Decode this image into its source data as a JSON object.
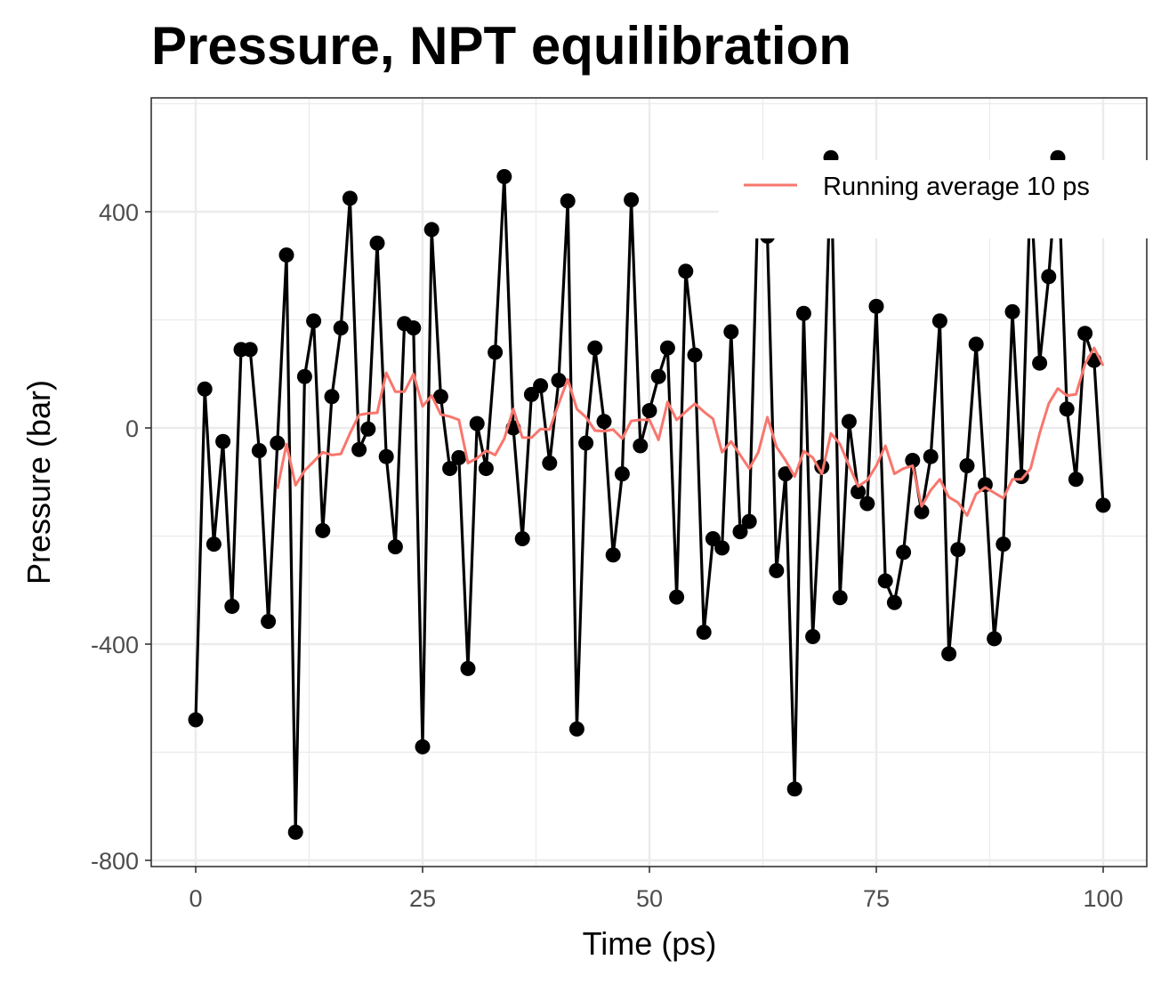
{
  "chart_data": {
    "type": "line",
    "title": "Pressure, NPT equilibration",
    "xlabel": "Time (ps)",
    "ylabel": "Pressure (bar)",
    "xlim": [
      -5,
      105
    ],
    "ylim": [
      -810,
      600
    ],
    "x_ticks": [
      0,
      25,
      50,
      75,
      100
    ],
    "x_tick_labels": [
      "0",
      "25",
      "50",
      "75",
      "100"
    ],
    "y_ticks": [
      -800,
      -400,
      0,
      400
    ],
    "y_tick_labels": [
      "-800",
      "-400",
      "0",
      "400"
    ],
    "grid": true,
    "legend_position": "top-right",
    "series": [
      {
        "style": "line+points",
        "color": "#000000",
        "x": [
          0,
          1,
          2,
          3,
          4,
          5,
          6,
          7,
          8,
          9,
          10,
          11,
          12,
          13,
          14,
          15,
          16,
          17,
          18,
          19,
          20,
          21,
          22,
          23,
          24,
          25,
          26,
          27,
          28,
          29,
          30,
          31,
          32,
          33,
          34,
          35,
          36,
          37,
          38,
          39,
          40,
          41,
          42,
          43,
          44,
          45,
          46,
          47,
          48,
          49,
          50,
          51,
          52,
          53,
          54,
          55,
          56,
          57,
          58,
          59,
          60,
          61,
          62,
          63,
          64,
          65,
          66,
          67,
          68,
          69,
          70,
          71,
          72,
          73,
          74,
          75,
          76,
          77,
          78,
          79,
          80,
          81,
          82,
          83,
          84,
          85,
          86,
          87,
          88,
          89,
          90,
          91,
          92,
          93,
          94,
          95,
          96,
          97,
          98,
          99,
          100
        ],
        "y": [
          -540,
          72,
          -215,
          -25,
          -330,
          145,
          145,
          -42,
          -358,
          -28,
          320,
          -748,
          95,
          198,
          -190,
          58,
          185,
          425,
          -40,
          -2,
          342,
          -53,
          -220,
          193,
          185,
          -590,
          367,
          58,
          -75,
          -55,
          -445,
          8,
          -75,
          140,
          465,
          0,
          -205,
          62,
          78,
          -65,
          88,
          420,
          -557,
          -28,
          148,
          12,
          -235,
          -85,
          422,
          -33,
          32,
          95,
          148,
          -313,
          290,
          135,
          -378,
          -205,
          -222,
          178,
          -192,
          -173,
          450,
          355,
          -264,
          -85,
          -668,
          212,
          -386,
          -72,
          500,
          -314,
          12,
          -118,
          -140,
          225,
          -283,
          -323,
          -230,
          -60,
          -155,
          -53,
          198,
          -418,
          -225,
          -70,
          155,
          -105,
          -390,
          -215,
          215,
          -90,
          450,
          120,
          280,
          500,
          35,
          -95,
          175,
          125,
          -143
        ]
      },
      {
        "name": "Running average 10 ps",
        "style": "line",
        "color": "#f8766d",
        "x": [
          9,
          10,
          11,
          12,
          13,
          14,
          15,
          16,
          17,
          18,
          19,
          20,
          21,
          22,
          23,
          24,
          25,
          26,
          27,
          28,
          29,
          30,
          31,
          32,
          33,
          34,
          35,
          36,
          37,
          38,
          39,
          40,
          41,
          42,
          43,
          44,
          45,
          46,
          47,
          48,
          49,
          50,
          51,
          52,
          53,
          54,
          55,
          56,
          57,
          58,
          59,
          60,
          61,
          62,
          63,
          64,
          65,
          66,
          67,
          68,
          69,
          70,
          71,
          72,
          73,
          74,
          75,
          76,
          77,
          78,
          79,
          80,
          81,
          82,
          83,
          84,
          85,
          86,
          87,
          88,
          89,
          90,
          91,
          92,
          93,
          94,
          95,
          96,
          97,
          98,
          99,
          100
        ],
        "y": [
          -113,
          -30,
          -106,
          -79,
          -62,
          -45,
          -50,
          -48,
          -10,
          24,
          27,
          28,
          102,
          67,
          67,
          100,
          40,
          60,
          25,
          21,
          15,
          -65,
          -56,
          -42,
          -50,
          -20,
          35,
          -18,
          -18,
          -2,
          -3,
          45,
          90,
          35,
          20,
          -5,
          -6,
          -3,
          -20,
          13,
          15,
          15,
          -22,
          48,
          15,
          30,
          45,
          30,
          17,
          -45,
          -25,
          -50,
          -75,
          -45,
          20,
          -35,
          -60,
          -90,
          -43,
          -55,
          -85,
          -10,
          -30,
          -70,
          -108,
          -97,
          -70,
          -33,
          -85,
          -75,
          -70,
          -145,
          -115,
          -95,
          -128,
          -138,
          -162,
          -122,
          -110,
          -120,
          -130,
          -95,
          -95,
          -75,
          -10,
          45,
          73,
          60,
          62,
          118,
          148,
          115
        ]
      }
    ]
  }
}
